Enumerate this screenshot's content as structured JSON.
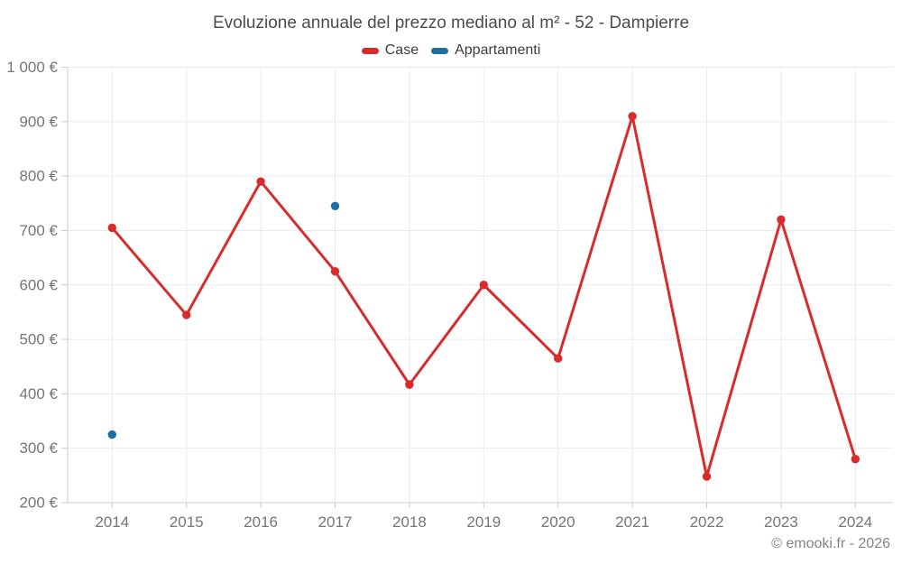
{
  "page": {
    "background": "#ffffff",
    "footer": "© emooki.fr - 2026"
  },
  "chart_data": {
    "type": "line",
    "title": "Evoluzione annuale del prezzo mediano al m² - 52 - Dampierre",
    "categories": [
      "2014",
      "2015",
      "2016",
      "2017",
      "2018",
      "2019",
      "2020",
      "2021",
      "2022",
      "2023",
      "2024"
    ],
    "series": [
      {
        "name": "Case",
        "type": "line",
        "color": "#d92b2b",
        "values": [
          705,
          545,
          790,
          625,
          417,
          600,
          465,
          910,
          248,
          720,
          280
        ]
      },
      {
        "name": "Appartamenti",
        "type": "scatter",
        "color": "#1c6ea4",
        "values": [
          325,
          null,
          null,
          745,
          null,
          null,
          null,
          null,
          null,
          null,
          null
        ]
      }
    ],
    "xlabel": "",
    "ylabel": "",
    "ylim": [
      200,
      1000
    ],
    "y_tick_step": 100,
    "y_tick_labels": [
      "200 €",
      "300 €",
      "400 €",
      "500 €",
      "600 €",
      "700 €",
      "800 €",
      "900 €",
      "1 000 €"
    ],
    "grid": true,
    "legend_position": "top",
    "colors": {
      "grid": "#ebebeb",
      "axis_line": "#cccccc",
      "axis_text": "#767676",
      "title_text": "#4d4d4d",
      "legend_text": "#3d3d3d",
      "footer_text": "#82868b"
    }
  }
}
